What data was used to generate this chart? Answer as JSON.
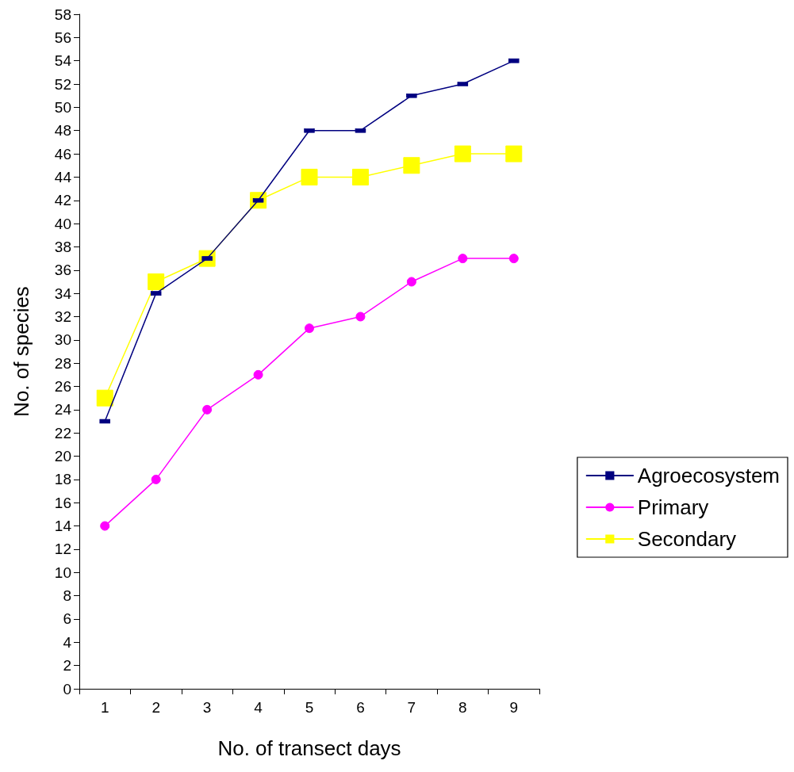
{
  "chart_data": {
    "type": "line",
    "xlabel": "No. of transect days",
    "ylabel": "No. of species",
    "categories": [
      "1",
      "2",
      "3",
      "4",
      "5",
      "6",
      "7",
      "8",
      "9"
    ],
    "ylim": [
      0,
      58
    ],
    "yticks": [
      0,
      2,
      4,
      6,
      8,
      10,
      12,
      14,
      16,
      18,
      20,
      22,
      24,
      26,
      28,
      30,
      32,
      34,
      36,
      38,
      40,
      42,
      44,
      46,
      48,
      50,
      52,
      54,
      56,
      58
    ],
    "grid": false,
    "legend": "right",
    "line_style": "solid",
    "series": [
      {
        "name": "Agroecosystem",
        "color": "#000080",
        "marker": "square",
        "values": [
          23,
          34,
          37,
          42,
          48,
          48,
          51,
          52,
          54
        ]
      },
      {
        "name": "Primary",
        "color": "#ff00ff",
        "marker": "circle",
        "values": [
          14,
          18,
          24,
          27,
          31,
          32,
          35,
          37,
          37
        ]
      },
      {
        "name": "Secondary",
        "color": "#ffff00",
        "marker": "square",
        "values": [
          25,
          35,
          37,
          42,
          44,
          44,
          45,
          46,
          46
        ]
      }
    ]
  }
}
